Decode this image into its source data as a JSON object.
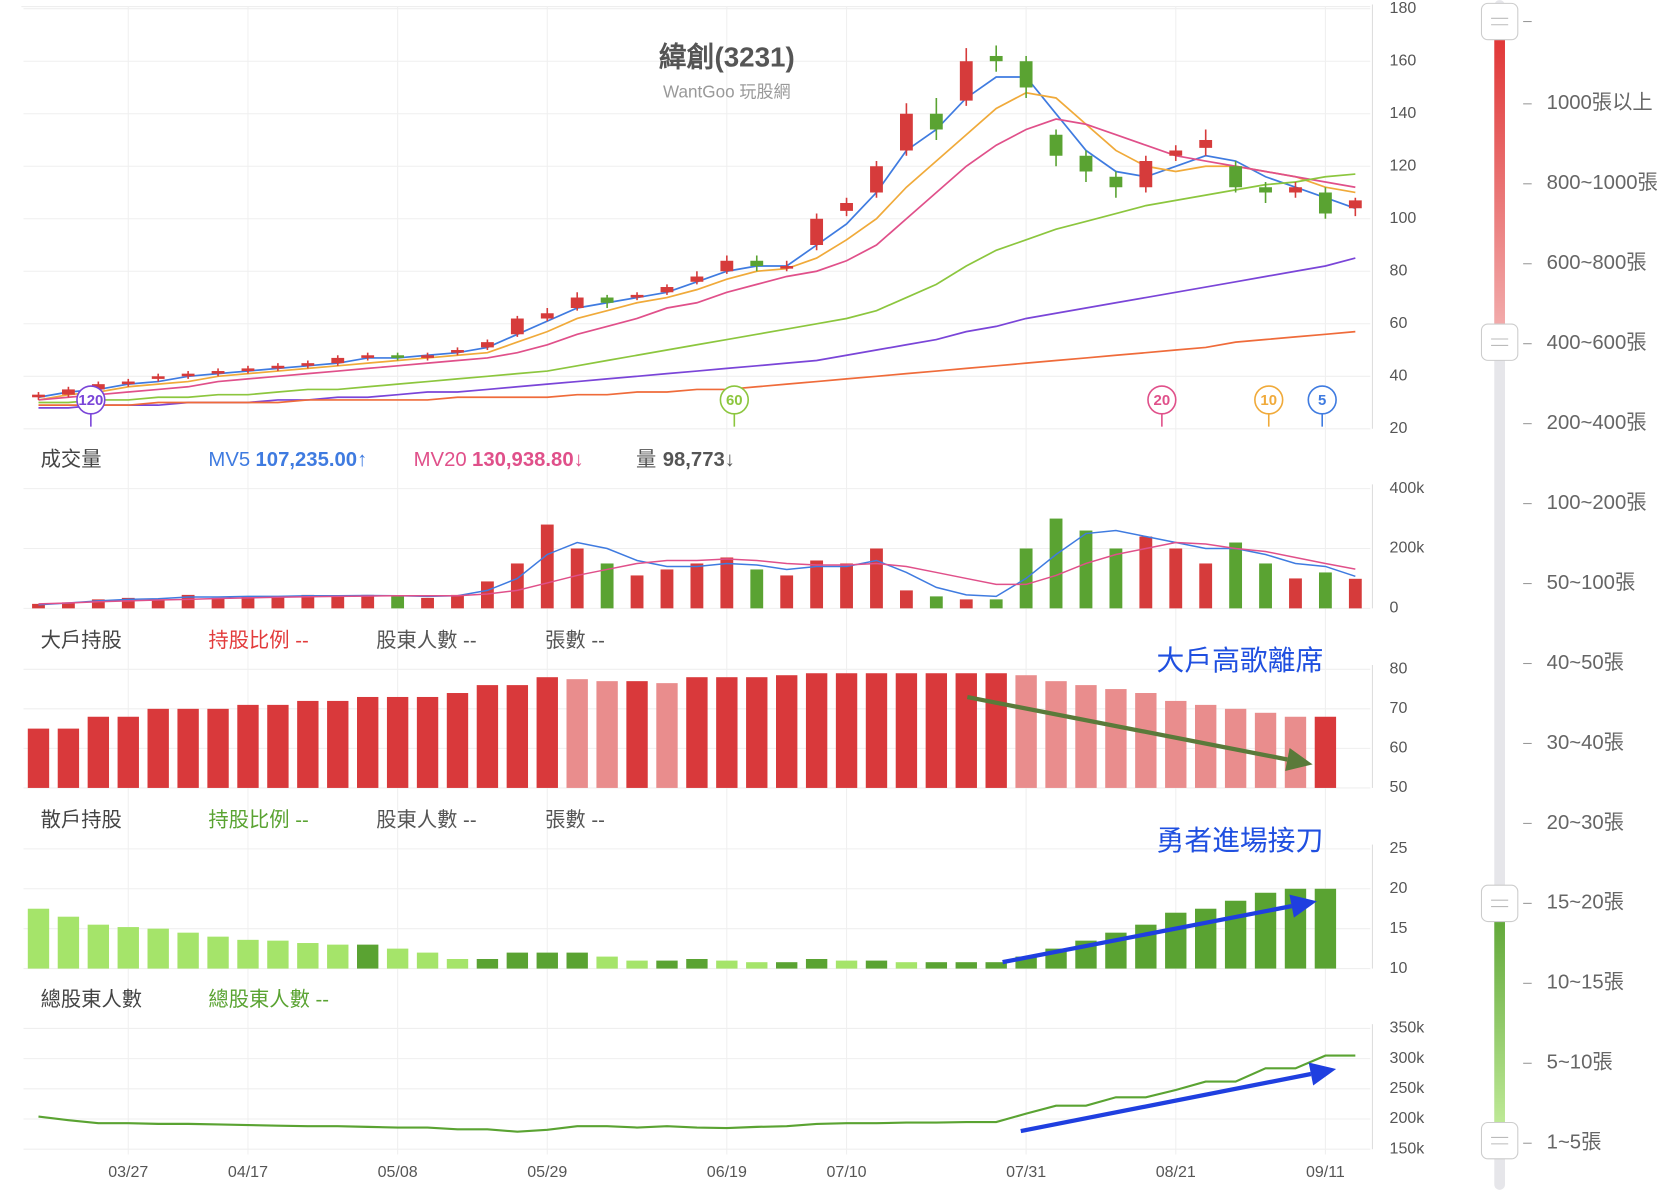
{
  "chart_data": [
    {
      "type": "candlestick",
      "title": "緯創(3231)",
      "subtitle": "WantGoo 玩股網",
      "open": [
        32,
        33,
        35,
        37,
        39,
        40,
        41,
        42,
        43,
        44,
        45,
        47,
        48,
        47,
        49,
        51,
        56,
        62,
        66,
        70,
        70,
        72,
        76,
        80,
        84,
        81,
        90,
        103,
        110,
        126,
        140,
        145,
        162,
        160,
        132,
        124,
        116,
        112,
        124,
        127,
        120,
        112,
        110,
        110,
        104
      ],
      "high": [
        34,
        36,
        38,
        39,
        41,
        42,
        43,
        44,
        45,
        46,
        48,
        49,
        49,
        49,
        51,
        54,
        63,
        66,
        72,
        71,
        72,
        75,
        80,
        86,
        86,
        84,
        102,
        108,
        122,
        144,
        146,
        165,
        166,
        162,
        134,
        126,
        118,
        124,
        128,
        134,
        122,
        114,
        114,
        112,
        108
      ],
      "low": [
        31,
        32,
        34,
        36,
        38,
        39,
        40,
        41,
        42,
        43,
        44,
        46,
        46,
        46,
        48,
        50,
        55,
        61,
        65,
        66,
        69,
        71,
        75,
        79,
        80,
        80,
        88,
        101,
        108,
        124,
        130,
        143,
        156,
        146,
        120,
        114,
        108,
        110,
        122,
        124,
        110,
        106,
        108,
        100,
        101
      ],
      "close": [
        33,
        35,
        37,
        38,
        40,
        41,
        42,
        43,
        44,
        45,
        47,
        48,
        47,
        48,
        50,
        53,
        62,
        64,
        70,
        68,
        71,
        74,
        78,
        84,
        82,
        82,
        100,
        106,
        120,
        140,
        134,
        160,
        160,
        150,
        124,
        118,
        112,
        122,
        126,
        130,
        112,
        110,
        112,
        102,
        107
      ],
      "up_color": "#d63b3b",
      "down_color": "#5aa332",
      "ylim": [
        20,
        180
      ],
      "yticks": [
        20,
        40,
        60,
        80,
        100,
        120,
        140,
        160,
        180
      ],
      "grid": true,
      "series": [
        {
          "name": "5",
          "color": "#3f7be0",
          "values": [
            32,
            34,
            35,
            37,
            38,
            40,
            41,
            42,
            43,
            44,
            45,
            47,
            47,
            48,
            49,
            51,
            56,
            61,
            66,
            68,
            70,
            72,
            76,
            80,
            82,
            82,
            90,
            98,
            110,
            126,
            134,
            146,
            154,
            154,
            140,
            126,
            118,
            116,
            120,
            124,
            122,
            116,
            112,
            108,
            104
          ]
        },
        {
          "name": "10",
          "color": "#f0aa3a",
          "values": [
            31,
            33,
            34,
            36,
            37,
            38,
            40,
            41,
            42,
            43,
            44,
            45,
            46,
            47,
            48,
            49,
            53,
            57,
            62,
            65,
            68,
            70,
            73,
            77,
            80,
            81,
            85,
            92,
            100,
            112,
            122,
            132,
            142,
            148,
            146,
            136,
            126,
            120,
            118,
            120,
            120,
            118,
            116,
            112,
            110
          ]
        },
        {
          "name": "20",
          "color": "#e0508a",
          "values": [
            31,
            32,
            33,
            34,
            35,
            36,
            38,
            39,
            40,
            41,
            42,
            43,
            44,
            45,
            46,
            47,
            49,
            52,
            56,
            59,
            62,
            66,
            68,
            72,
            75,
            78,
            80,
            84,
            90,
            100,
            110,
            120,
            128,
            134,
            138,
            136,
            132,
            128,
            124,
            122,
            120,
            118,
            116,
            114,
            112
          ]
        },
        {
          "name": "60",
          "color": "#8cc63e",
          "values": [
            30,
            30,
            31,
            31,
            32,
            32,
            33,
            33,
            34,
            35,
            35,
            36,
            37,
            38,
            39,
            40,
            41,
            42,
            44,
            46,
            48,
            50,
            52,
            54,
            56,
            58,
            60,
            62,
            65,
            70,
            75,
            82,
            88,
            92,
            96,
            99,
            102,
            105,
            107,
            109,
            111,
            113,
            114,
            116,
            117
          ]
        },
        {
          "name": "120",
          "color": "#7a45d8",
          "values": [
            28,
            28,
            29,
            29,
            29,
            30,
            30,
            30,
            31,
            31,
            32,
            32,
            33,
            34,
            34,
            35,
            36,
            37,
            38,
            39,
            40,
            41,
            42,
            43,
            44,
            45,
            46,
            48,
            50,
            52,
            54,
            57,
            59,
            62,
            64,
            66,
            68,
            70,
            72,
            74,
            76,
            78,
            80,
            82,
            85
          ]
        },
        {
          "color": "#ef6b3a",
          "values": [
            29,
            29,
            29,
            29,
            30,
            30,
            30,
            30,
            30,
            31,
            31,
            31,
            31,
            31,
            32,
            32,
            32,
            32,
            33,
            33,
            34,
            34,
            35,
            35,
            36,
            37,
            38,
            39,
            40,
            41,
            42,
            43,
            44,
            45,
            46,
            47,
            48,
            49,
            50,
            51,
            53,
            54,
            55,
            56,
            57
          ]
        }
      ]
    },
    {
      "type": "bar",
      "title": "成交量",
      "values": [
        15000,
        20000,
        30000,
        35000,
        30000,
        45000,
        35000,
        40000,
        40000,
        45000,
        40000,
        45000,
        40000,
        35000,
        45000,
        90000,
        150000,
        280000,
        200000,
        150000,
        110000,
        130000,
        150000,
        170000,
        130000,
        110000,
        160000,
        150000,
        200000,
        60000,
        40000,
        30000,
        30000,
        200000,
        300000,
        260000,
        200000,
        240000,
        200000,
        150000,
        220000,
        150000,
        100000,
        120000,
        98773
      ],
      "current_name": "量",
      "current_label": "98,773↓",
      "ylim": [
        0,
        400000
      ],
      "yticks": [
        0,
        {
          "value": 200000,
          "label": "200k"
        },
        {
          "value": 400000,
          "label": "400k"
        }
      ],
      "series": [
        {
          "name": "MV5",
          "color": "#3f7be0",
          "last_label": "107,235.00↑",
          "values": [
            12000,
            18000,
            25000,
            30000,
            32000,
            38000,
            38000,
            40000,
            40000,
            42000,
            42000,
            43000,
            42000,
            40000,
            42000,
            60000,
            100000,
            180000,
            220000,
            200000,
            160000,
            140000,
            140000,
            150000,
            145000,
            130000,
            140000,
            140000,
            160000,
            120000,
            70000,
            45000,
            40000,
            100000,
            180000,
            250000,
            260000,
            240000,
            220000,
            200000,
            200000,
            180000,
            150000,
            140000,
            107235
          ]
        },
        {
          "name": "MV20",
          "color": "#e0508a",
          "last_label": "130,938.80↓",
          "values": [
            15000,
            18000,
            22000,
            25000,
            28000,
            30000,
            33000,
            35000,
            37000,
            39000,
            40000,
            41000,
            42000,
            42000,
            42000,
            48000,
            60000,
            85000,
            110000,
            130000,
            150000,
            160000,
            160000,
            165000,
            160000,
            150000,
            145000,
            145000,
            150000,
            140000,
            120000,
            100000,
            80000,
            80000,
            110000,
            150000,
            180000,
            200000,
            220000,
            215000,
            200000,
            190000,
            170000,
            150000,
            130938.8
          ]
        }
      ]
    },
    {
      "type": "bar",
      "title": "大戶持股",
      "fields": [
        "持股比例 --",
        "股東人數 --",
        "張數 --"
      ],
      "field_colors": [
        "#e23b3b",
        "#555555",
        "#555555"
      ],
      "annotation": "大戶高歌離席",
      "annotation_color": "#1f4fe0",
      "values": [
        65,
        65,
        68,
        68,
        70,
        70,
        70,
        71,
        71,
        72,
        72,
        73,
        73,
        73,
        74,
        76,
        76,
        78,
        77.5,
        77,
        77,
        76.5,
        78,
        78,
        78,
        78.5,
        79,
        79,
        79,
        79,
        79,
        79,
        79,
        78.5,
        77,
        76,
        75,
        74,
        72,
        71,
        70,
        69,
        68,
        68,
        null
      ],
      "color": "#d9393b",
      "light_color": "#e98d8d",
      "ylim": [
        50,
        80
      ],
      "yticks": [
        50,
        60,
        70,
        80
      ]
    },
    {
      "type": "bar",
      "title": "散戶持股",
      "fields": [
        "持股比例 --",
        "股東人數 --",
        "張數 --"
      ],
      "field_colors": [
        "#5aa332",
        "#555555",
        "#555555"
      ],
      "annotation": "勇者進場接刀",
      "annotation_color": "#1f4fe0",
      "values": [
        17.5,
        16.5,
        15.5,
        15.2,
        15,
        14.5,
        14,
        13.6,
        13.5,
        13.2,
        13,
        13,
        12.5,
        12,
        11.2,
        11.2,
        12,
        12,
        12,
        11.5,
        11,
        11,
        11.2,
        11,
        10.8,
        10.8,
        11.2,
        11,
        11,
        10.8,
        10.8,
        10.8,
        10.8,
        11.5,
        12.5,
        13.5,
        14.5,
        15.5,
        17,
        17.5,
        18.5,
        19.5,
        20,
        20,
        null
      ],
      "color": "#5aa332",
      "light_color": "#a5e46a",
      "ylim": [
        10,
        25
      ],
      "yticks": [
        10,
        15,
        20,
        25
      ]
    },
    {
      "type": "line",
      "title": "總股東人數",
      "fields": [
        "總股東人數 --"
      ],
      "field_colors": [
        "#5aa332"
      ],
      "categories": [
        null,
        null,
        null,
        "03/27",
        null,
        null,
        null,
        "04/17",
        null,
        null,
        null,
        null,
        "05/08",
        null,
        null,
        null,
        null,
        "05/29",
        null,
        null,
        null,
        null,
        null,
        "06/19",
        null,
        null,
        null,
        "07/10",
        null,
        null,
        null,
        null,
        null,
        "07/31",
        null,
        null,
        null,
        null,
        "08/21",
        null,
        null,
        null,
        null,
        "09/11",
        null
      ],
      "values": [
        204000,
        198000,
        193000,
        193000,
        192000,
        192000,
        191000,
        190000,
        189000,
        188000,
        188000,
        187000,
        186000,
        186000,
        183000,
        183000,
        179000,
        182000,
        188000,
        188000,
        186000,
        188000,
        186000,
        185000,
        187000,
        188000,
        192000,
        193000,
        193000,
        194000,
        194000,
        195000,
        195000,
        209000,
        222000,
        222000,
        236000,
        236000,
        248000,
        262000,
        262000,
        284000,
        284000,
        305000,
        305000
      ],
      "color": "#5aa332",
      "ylim": [
        150000,
        350000
      ],
      "yticks": [
        {
          "value": 150000,
          "label": "150k"
        },
        {
          "value": 200000,
          "label": "200k"
        },
        {
          "value": 250000,
          "label": "250k"
        },
        {
          "value": 300000,
          "label": "300k"
        },
        {
          "value": 350000,
          "label": "350k"
        }
      ]
    }
  ],
  "range_slider": {
    "levels": [
      "1000張以上",
      "800~1000張",
      "600~800張",
      "400~600張",
      "200~400張",
      "100~200張",
      "50~100張",
      "40~50張",
      "30~40張",
      "20~30張",
      "15~20張",
      "10~15張",
      "5~10張",
      "1~5張"
    ]
  }
}
